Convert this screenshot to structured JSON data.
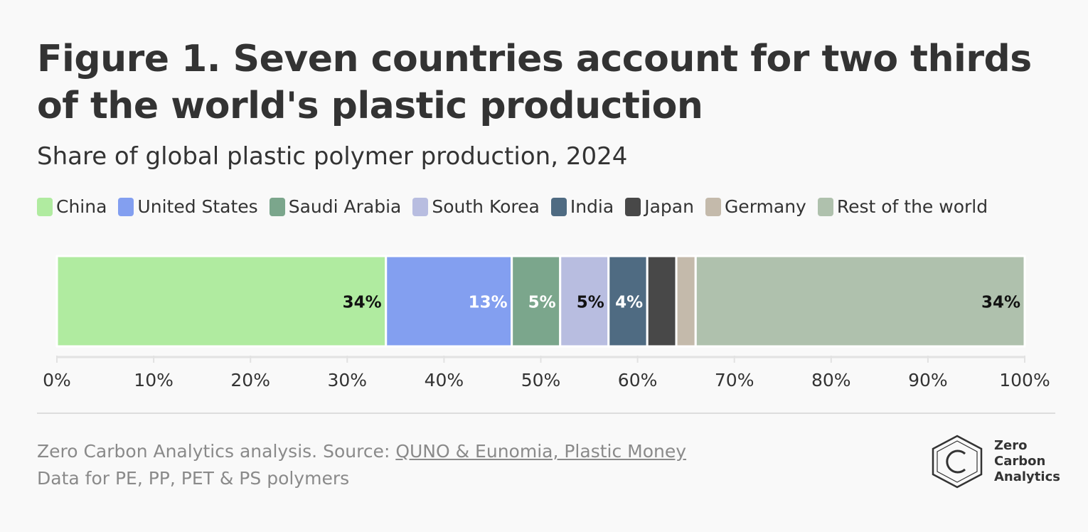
{
  "title": "Figure 1. Seven countries account for two thirds of the world's plastic production",
  "subtitle": "Share of global plastic polymer production, 2024",
  "chart_data": {
    "type": "bar",
    "orientation": "horizontal-stacked-100",
    "series": [
      {
        "name": "China",
        "value": 34,
        "label": "34%",
        "color": "#b0eba0",
        "label_color": "#111111"
      },
      {
        "name": "United States",
        "value": 13,
        "label": "13%",
        "color": "#839ff0",
        "label_color": "#ffffff"
      },
      {
        "name": "Saudi Arabia",
        "value": 5,
        "label": "5%",
        "color": "#7ba68c",
        "label_color": "#ffffff"
      },
      {
        "name": "South Korea",
        "value": 5,
        "label": "5%",
        "color": "#b8bde0",
        "label_color": "#111111"
      },
      {
        "name": "India",
        "value": 4,
        "label": "4%",
        "color": "#4f6b82",
        "label_color": "#ffffff"
      },
      {
        "name": "Japan",
        "value": 3,
        "label": "",
        "color": "#484848",
        "label_color": "#ffffff"
      },
      {
        "name": "Germany",
        "value": 2,
        "label": "",
        "color": "#c4baab",
        "label_color": "#111111"
      },
      {
        "name": "Rest of the world",
        "value": 34,
        "label": "34%",
        "color": "#afc1ad",
        "label_color": "#111111"
      }
    ],
    "xlim": [
      0,
      100
    ],
    "x_ticks": [
      "0%",
      "10%",
      "20%",
      "30%",
      "40%",
      "50%",
      "60%",
      "70%",
      "80%",
      "90%",
      "100%"
    ],
    "legend_position": "top-left",
    "grid": false
  },
  "footer": {
    "source_prefix": "Zero Carbon Analytics analysis. Source: ",
    "source_link": "QUNO & Eunomia, Plastic Money",
    "note": "Data for PE, PP, PET & PS polymers"
  },
  "logo": {
    "icon": "hexagon-c-logo-icon",
    "lines": [
      "Zero",
      "Carbon",
      "Analytics"
    ]
  }
}
